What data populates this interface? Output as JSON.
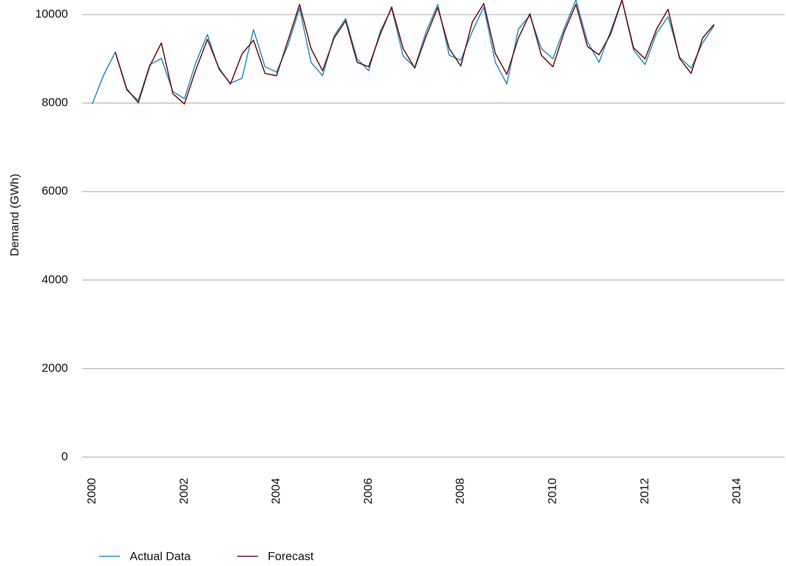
{
  "chart_data": {
    "type": "line",
    "y_label": "Demand (GWh)",
    "x": [
      2000,
      2000.25,
      2000.5,
      2000.75,
      2001,
      2001.25,
      2001.5,
      2001.75,
      2002,
      2002.25,
      2002.5,
      2002.75,
      2003,
      2003.25,
      2003.5,
      2003.75,
      2004,
      2004.25,
      2004.5,
      2004.75,
      2005,
      2005.25,
      2005.5,
      2005.75,
      2006,
      2006.25,
      2006.5,
      2006.75,
      2007,
      2007.25,
      2007.5,
      2007.75,
      2008,
      2008.25,
      2008.5,
      2008.75,
      2009,
      2009.25,
      2009.5,
      2009.75,
      2010,
      2010.25,
      2010.5,
      2010.75,
      2011,
      2011.25,
      2011.5,
      2011.75,
      2012,
      2012.25,
      2012.5,
      2012.75,
      2013,
      2013.25,
      2013.5
    ],
    "series": [
      {
        "name": "Actual Data",
        "color": "#2e8fba",
        "values": [
          7980,
          8640,
          9150,
          8290,
          8060,
          8870,
          9010,
          8260,
          8100,
          8920,
          9550,
          8760,
          8450,
          8560,
          9660,
          8820,
          8700,
          9310,
          10140,
          8920,
          8620,
          9520,
          9910,
          9000,
          8730,
          9620,
          10140,
          9060,
          8810,
          9620,
          10230,
          9080,
          8970,
          9620,
          10170,
          8920,
          8430,
          9670,
          9980,
          9230,
          9000,
          9700,
          10330,
          9390,
          8920,
          9620,
          10330,
          9200,
          8870,
          9580,
          9950,
          9040,
          8790,
          9360,
          9750
        ]
      },
      {
        "name": "Forecast",
        "color": "#6b1016",
        "values": [
          null,
          null,
          9150,
          8320,
          8010,
          8840,
          9360,
          8210,
          7980,
          8760,
          9440,
          8790,
          8430,
          9110,
          9420,
          8670,
          8620,
          9420,
          10230,
          9230,
          8730,
          9470,
          9860,
          8920,
          8820,
          9550,
          10170,
          9230,
          8790,
          9520,
          10160,
          9230,
          8840,
          9830,
          10250,
          9120,
          8650,
          9470,
          10020,
          9080,
          8820,
          9620,
          10230,
          9280,
          9090,
          9550,
          10330,
          9250,
          9000,
          9670,
          10120,
          9010,
          8670,
          9470,
          9780
        ]
      }
    ],
    "xlim": [
      2000,
      2015
    ],
    "xticks": [
      2000,
      2002,
      2004,
      2006,
      2008,
      2010,
      2012,
      2014
    ],
    "ylim": [
      0,
      10400
    ],
    "yticks": [
      0,
      2000,
      4000,
      6000,
      8000,
      10000
    ],
    "grid": true,
    "legend": "bottom"
  }
}
